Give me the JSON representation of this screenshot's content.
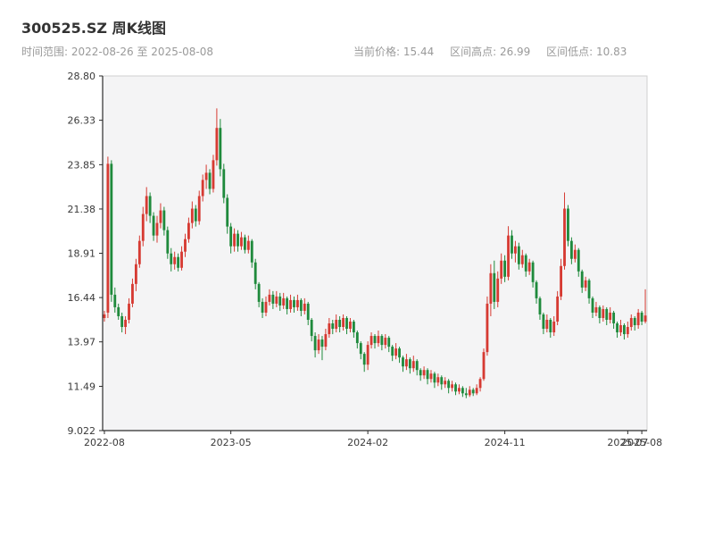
{
  "header": {
    "title": "300525.SZ 周K线图",
    "range_label": "时间范围:",
    "range_start": "2022-08-26",
    "range_sep": "至",
    "range_end": "2025-08-08",
    "stats": [
      {
        "label": "当前价格:",
        "value": "15.44"
      },
      {
        "label": "区间高点:",
        "value": "26.99"
      },
      {
        "label": "区间低点:",
        "value": "10.83"
      }
    ]
  },
  "chart_data": {
    "type": "candlestick",
    "title": "300525.SZ 周K线图",
    "symbol": "300525.SZ",
    "frequency": "weekly",
    "ylim": [
      9.022,
      28.8
    ],
    "grid": false,
    "y_ticks": [
      {
        "label": "28.80",
        "value": 28.8
      },
      {
        "label": "26.33",
        "value": 26.33
      },
      {
        "label": "23.85",
        "value": 23.85
      },
      {
        "label": "21.38",
        "value": 21.38
      },
      {
        "label": "18.91",
        "value": 18.91
      },
      {
        "label": "16.44",
        "value": 16.44
      },
      {
        "label": "13.97",
        "value": 13.97
      },
      {
        "label": "11.49",
        "value": 11.49
      },
      {
        "label": "9.022",
        "value": 9.022
      }
    ],
    "x_ticks": [
      {
        "label": "2022-08",
        "index": 0
      },
      {
        "label": "2023-05",
        "index": 36
      },
      {
        "label": "2024-02",
        "index": 75
      },
      {
        "label": "2024-11",
        "index": 114
      },
      {
        "label": "2025-07",
        "index": 149
      },
      {
        "label": "2025-08",
        "index": 153
      }
    ],
    "colors": {
      "up": "#d63a32",
      "down": "#1f8a3c",
      "plot_bg": "#f4f4f5",
      "plot_border": "#d0d0d0",
      "axis": "#2c2c2c",
      "tick_text": "#3a3a3a"
    },
    "ohlc": [
      [
        15.3,
        15.7,
        15.1,
        15.5
      ],
      [
        15.6,
        24.3,
        15.3,
        23.9
      ],
      [
        23.9,
        24.1,
        16.2,
        16.6
      ],
      [
        16.6,
        17.0,
        15.6,
        15.9
      ],
      [
        15.9,
        16.1,
        15.2,
        15.4
      ],
      [
        15.4,
        15.6,
        14.5,
        14.8
      ],
      [
        14.8,
        15.4,
        14.4,
        15.2
      ],
      [
        15.2,
        16.4,
        15.0,
        16.1
      ],
      [
        16.1,
        17.5,
        15.9,
        17.2
      ],
      [
        17.2,
        18.6,
        16.8,
        18.3
      ],
      [
        18.3,
        19.9,
        18.1,
        19.6
      ],
      [
        19.6,
        21.5,
        19.3,
        21.1
      ],
      [
        21.1,
        22.6,
        20.7,
        22.1
      ],
      [
        22.1,
        22.3,
        20.6,
        21.0
      ],
      [
        21.0,
        21.2,
        19.6,
        19.9
      ],
      [
        19.9,
        21.0,
        19.5,
        20.6
      ],
      [
        20.6,
        21.7,
        20.3,
        21.3
      ],
      [
        21.3,
        21.5,
        19.9,
        20.2
      ],
      [
        20.2,
        20.4,
        18.6,
        18.9
      ],
      [
        18.9,
        19.2,
        17.9,
        18.3
      ],
      [
        18.3,
        19.0,
        18.0,
        18.7
      ],
      [
        18.7,
        18.9,
        17.9,
        18.1
      ],
      [
        18.1,
        19.3,
        17.95,
        19.0
      ],
      [
        19.0,
        20.0,
        18.7,
        19.7
      ],
      [
        19.7,
        20.9,
        19.5,
        20.6
      ],
      [
        20.6,
        21.8,
        20.3,
        21.4
      ],
      [
        21.4,
        21.6,
        20.4,
        20.7
      ],
      [
        20.7,
        22.4,
        20.5,
        22.1
      ],
      [
        22.1,
        23.3,
        21.8,
        23.0
      ],
      [
        23.0,
        23.85,
        22.5,
        23.4
      ],
      [
        23.4,
        23.6,
        22.2,
        22.5
      ],
      [
        22.5,
        24.4,
        22.3,
        24.1
      ],
      [
        24.1,
        26.99,
        23.8,
        25.9
      ],
      [
        25.9,
        26.4,
        23.2,
        23.6
      ],
      [
        23.6,
        23.9,
        21.7,
        22.0
      ],
      [
        22.0,
        22.2,
        20.0,
        20.4
      ],
      [
        20.4,
        20.6,
        18.9,
        19.3
      ],
      [
        19.3,
        20.3,
        19.0,
        20.0
      ],
      [
        20.0,
        20.2,
        19.0,
        19.3
      ],
      [
        19.3,
        20.1,
        19.1,
        19.8
      ],
      [
        19.8,
        19.95,
        18.9,
        19.1
      ],
      [
        19.1,
        19.9,
        18.9,
        19.6
      ],
      [
        19.6,
        19.7,
        18.1,
        18.4
      ],
      [
        18.4,
        18.6,
        16.9,
        17.2
      ],
      [
        17.2,
        17.3,
        15.9,
        16.2
      ],
      [
        16.2,
        16.4,
        15.3,
        15.6
      ],
      [
        15.6,
        16.5,
        15.4,
        16.2
      ],
      [
        16.2,
        16.9,
        16.0,
        16.6
      ],
      [
        16.6,
        16.8,
        15.8,
        16.1
      ],
      [
        16.1,
        16.8,
        15.9,
        16.5
      ],
      [
        16.5,
        16.7,
        15.7,
        16.0
      ],
      [
        16.0,
        16.7,
        15.8,
        16.4
      ],
      [
        16.4,
        16.5,
        15.5,
        15.8
      ],
      [
        15.8,
        16.6,
        15.6,
        16.3
      ],
      [
        16.3,
        16.5,
        15.6,
        15.9
      ],
      [
        15.9,
        16.6,
        15.7,
        16.3
      ],
      [
        16.3,
        16.4,
        15.4,
        15.7
      ],
      [
        15.7,
        16.4,
        15.5,
        16.1
      ],
      [
        16.1,
        16.2,
        14.9,
        15.2
      ],
      [
        15.2,
        15.3,
        14.0,
        14.3
      ],
      [
        14.3,
        14.5,
        13.1,
        13.5
      ],
      [
        13.5,
        14.4,
        13.3,
        14.1
      ],
      [
        14.1,
        14.3,
        12.95,
        13.7
      ],
      [
        13.7,
        14.7,
        13.5,
        14.4
      ],
      [
        14.4,
        15.3,
        14.2,
        15.0
      ],
      [
        15.0,
        15.2,
        14.4,
        14.7
      ],
      [
        14.7,
        15.5,
        14.5,
        15.2
      ],
      [
        15.2,
        15.4,
        14.5,
        14.8
      ],
      [
        14.8,
        15.5,
        14.6,
        15.3
      ],
      [
        15.3,
        15.4,
        14.4,
        14.7
      ],
      [
        14.7,
        15.3,
        14.5,
        15.1
      ],
      [
        15.1,
        15.2,
        14.2,
        14.5
      ],
      [
        14.5,
        14.6,
        13.6,
        13.9
      ],
      [
        13.9,
        14.0,
        13.0,
        13.3
      ],
      [
        13.3,
        13.4,
        12.3,
        12.7
      ],
      [
        12.7,
        14.0,
        12.4,
        13.8
      ],
      [
        13.8,
        14.5,
        13.6,
        14.3
      ],
      [
        14.3,
        14.4,
        13.6,
        13.9
      ],
      [
        13.9,
        14.6,
        13.7,
        14.3
      ],
      [
        14.3,
        14.4,
        13.5,
        13.8
      ],
      [
        13.8,
        14.4,
        13.6,
        14.2
      ],
      [
        14.2,
        14.3,
        13.4,
        13.7
      ],
      [
        13.7,
        13.8,
        12.9,
        13.2
      ],
      [
        13.2,
        13.9,
        13.0,
        13.6
      ],
      [
        13.6,
        13.7,
        12.8,
        13.1
      ],
      [
        13.1,
        13.2,
        12.3,
        12.6
      ],
      [
        12.6,
        13.3,
        12.4,
        13.0
      ],
      [
        13.0,
        13.1,
        12.2,
        12.5
      ],
      [
        12.5,
        13.2,
        12.3,
        12.9
      ],
      [
        12.9,
        13.0,
        12.1,
        12.4
      ],
      [
        12.4,
        12.5,
        11.8,
        12.1
      ],
      [
        12.1,
        12.6,
        11.9,
        12.4
      ],
      [
        12.4,
        12.5,
        11.6,
        11.9
      ],
      [
        11.9,
        12.4,
        11.7,
        12.2
      ],
      [
        12.2,
        12.3,
        11.4,
        11.7
      ],
      [
        11.7,
        12.2,
        11.5,
        12.0
      ],
      [
        12.0,
        12.1,
        11.3,
        11.6
      ],
      [
        11.6,
        12.0,
        11.4,
        11.8
      ],
      [
        11.8,
        11.9,
        11.1,
        11.4
      ],
      [
        11.4,
        11.8,
        11.2,
        11.6
      ],
      [
        11.6,
        11.7,
        11.0,
        11.2
      ],
      [
        11.2,
        11.6,
        11.05,
        11.4
      ],
      [
        11.4,
        11.5,
        10.9,
        11.1
      ],
      [
        11.1,
        11.4,
        10.83,
        11.0
      ],
      [
        11.0,
        11.5,
        10.9,
        11.3
      ],
      [
        11.3,
        11.4,
        10.95,
        11.1
      ],
      [
        11.1,
        11.6,
        11.0,
        11.4
      ],
      [
        11.4,
        12.0,
        11.2,
        11.9
      ],
      [
        11.9,
        13.6,
        11.8,
        13.4
      ],
      [
        13.4,
        16.5,
        13.2,
        16.1
      ],
      [
        16.1,
        18.3,
        15.4,
        17.8
      ],
      [
        17.8,
        18.5,
        15.8,
        16.2
      ],
      [
        16.2,
        17.9,
        15.9,
        17.5
      ],
      [
        17.5,
        18.9,
        17.2,
        18.5
      ],
      [
        18.5,
        18.8,
        17.3,
        17.6
      ],
      [
        17.6,
        20.42,
        17.4,
        19.9
      ],
      [
        19.9,
        20.2,
        18.6,
        18.9
      ],
      [
        18.9,
        19.6,
        18.4,
        19.3
      ],
      [
        19.3,
        19.5,
        18.0,
        18.3
      ],
      [
        18.3,
        19.1,
        18.1,
        18.8
      ],
      [
        18.8,
        18.9,
        17.6,
        17.9
      ],
      [
        17.9,
        18.6,
        17.7,
        18.4
      ],
      [
        18.4,
        18.5,
        17.0,
        17.3
      ],
      [
        17.3,
        17.4,
        16.1,
        16.4
      ],
      [
        16.4,
        16.5,
        15.2,
        15.5
      ],
      [
        15.5,
        15.6,
        14.4,
        14.7
      ],
      [
        14.7,
        15.5,
        14.5,
        15.2
      ],
      [
        15.2,
        15.3,
        14.2,
        14.5
      ],
      [
        14.5,
        15.4,
        14.3,
        15.1
      ],
      [
        15.1,
        16.8,
        14.9,
        16.5
      ],
      [
        16.5,
        18.6,
        16.3,
        18.2
      ],
      [
        18.2,
        22.3,
        18.0,
        21.4
      ],
      [
        21.4,
        21.6,
        19.3,
        19.6
      ],
      [
        19.6,
        19.8,
        18.3,
        18.6
      ],
      [
        18.6,
        19.4,
        18.4,
        19.1
      ],
      [
        19.1,
        19.2,
        17.6,
        17.9
      ],
      [
        17.9,
        18.0,
        16.7,
        17.0
      ],
      [
        17.0,
        17.6,
        16.8,
        17.4
      ],
      [
        17.4,
        17.5,
        16.1,
        16.4
      ],
      [
        16.4,
        16.5,
        15.3,
        15.6
      ],
      [
        15.6,
        16.2,
        15.4,
        15.9
      ],
      [
        15.9,
        16.0,
        15.0,
        15.3
      ],
      [
        15.3,
        16.0,
        15.1,
        15.8
      ],
      [
        15.8,
        15.9,
        14.9,
        15.2
      ],
      [
        15.2,
        15.9,
        15.0,
        15.6
      ],
      [
        15.6,
        15.7,
        14.7,
        15.0
      ],
      [
        15.0,
        15.1,
        14.2,
        14.5
      ],
      [
        14.5,
        15.2,
        14.3,
        14.9
      ],
      [
        14.9,
        15.0,
        14.1,
        14.4
      ],
      [
        14.4,
        15.1,
        14.2,
        14.8
      ],
      [
        14.8,
        15.5,
        14.6,
        15.3
      ],
      [
        15.3,
        15.4,
        14.6,
        14.9
      ],
      [
        14.9,
        15.8,
        14.7,
        15.6
      ],
      [
        15.6,
        15.7,
        14.9,
        15.1
      ],
      [
        15.1,
        16.9,
        15.0,
        15.44
      ]
    ]
  }
}
